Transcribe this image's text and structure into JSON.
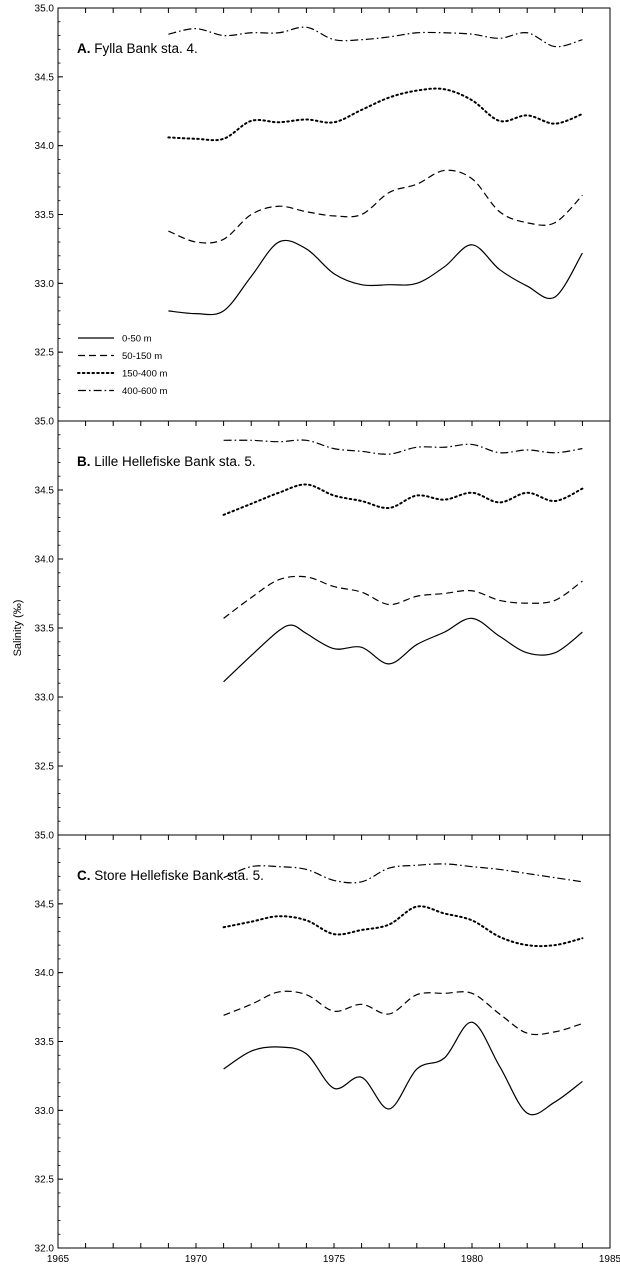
{
  "chart_data": {
    "type": "line",
    "ylabel_prefix": "Salinity (",
    "ylabel_unit": "‰",
    "ylabel_suffix": ")",
    "x_ticks": [
      1965,
      1970,
      1975,
      1980,
      1985
    ],
    "xlim": [
      1965,
      1985
    ],
    "grid": false,
    "legend_placement": "lower-left of panel A",
    "legend": [
      {
        "label": "0-50 m",
        "style": "solid"
      },
      {
        "label": "50-150 m",
        "style": "dashed"
      },
      {
        "label": "150-400 m",
        "style": "dotted"
      },
      {
        "label": "400-600 m",
        "style": "dashdot"
      }
    ],
    "panels": [
      {
        "letter": "A.",
        "title": "Fylla Bank sta. 4.",
        "ylim": [
          32.0,
          35.0
        ],
        "y_ticks": [
          "35.0",
          "34.5",
          "34.0",
          "33.5",
          "33.0",
          "32.5"
        ],
        "series": [
          {
            "depth": "0-50 m",
            "x": [
              1969,
              1970,
              1971,
              1972,
              1973,
              1974,
              1975,
              1976,
              1977,
              1978,
              1979,
              1980,
              1981,
              1982,
              1983,
              1984
            ],
            "values": [
              32.8,
              32.78,
              32.8,
              33.05,
              33.3,
              33.25,
              33.07,
              32.99,
              32.99,
              33.0,
              33.12,
              33.28,
              33.1,
              32.98,
              32.9,
              33.22
            ]
          },
          {
            "depth": "50-150 m",
            "x": [
              1969,
              1970,
              1971,
              1972,
              1973,
              1974,
              1975,
              1976,
              1977,
              1978,
              1979,
              1980,
              1981,
              1982,
              1983,
              1984
            ],
            "values": [
              33.38,
              33.3,
              33.32,
              33.5,
              33.56,
              33.52,
              33.49,
              33.5,
              33.66,
              33.72,
              33.82,
              33.76,
              33.52,
              33.44,
              33.44,
              33.64
            ]
          },
          {
            "depth": "150-400 m",
            "x": [
              1969,
              1970,
              1971,
              1972,
              1973,
              1974,
              1975,
              1976,
              1977,
              1978,
              1979,
              1980,
              1981,
              1982,
              1983,
              1984
            ],
            "values": [
              34.06,
              34.05,
              34.05,
              34.18,
              34.17,
              34.19,
              34.17,
              34.26,
              34.35,
              34.4,
              34.41,
              34.33,
              34.18,
              34.22,
              34.16,
              34.23
            ]
          },
          {
            "depth": "400-600 m",
            "x": [
              1969,
              1970,
              1971,
              1972,
              1973,
              1974,
              1975,
              1976,
              1977,
              1978,
              1979,
              1980,
              1981,
              1982,
              1983,
              1984
            ],
            "values": [
              34.81,
              34.85,
              34.8,
              34.82,
              34.82,
              34.86,
              34.77,
              34.77,
              34.79,
              34.82,
              34.82,
              34.81,
              34.78,
              34.82,
              34.72,
              34.77
            ]
          }
        ]
      },
      {
        "letter": "B.",
        "title": "Lille Hellefiske Bank sta. 5.",
        "ylim": [
          32.0,
          35.0
        ],
        "y_ticks": [
          "35.0",
          "34.5",
          "34.0",
          "33.5",
          "33.0",
          "32.5"
        ],
        "series": [
          {
            "depth": "0-50 m",
            "x": [
              1971,
              1972,
              1973,
              1973.5,
              1974,
              1975,
              1976,
              1977,
              1978,
              1979,
              1980,
              1981,
              1982,
              1983,
              1984
            ],
            "values": [
              33.11,
              33.3,
              33.48,
              33.52,
              33.46,
              33.35,
              33.36,
              33.24,
              33.38,
              33.47,
              33.57,
              33.44,
              33.32,
              33.32,
              33.47
            ]
          },
          {
            "depth": "50-150 m",
            "x": [
              1971,
              1972,
              1973,
              1974,
              1975,
              1976,
              1977,
              1978,
              1979,
              1980,
              1981,
              1982,
              1983,
              1984
            ],
            "values": [
              33.57,
              33.72,
              33.85,
              33.87,
              33.8,
              33.76,
              33.67,
              33.73,
              33.75,
              33.77,
              33.7,
              33.68,
              33.7,
              33.84
            ]
          },
          {
            "depth": "150-400 m",
            "x": [
              1971,
              1972,
              1973,
              1974,
              1975,
              1976,
              1977,
              1978,
              1979,
              1980,
              1981,
              1982,
              1983,
              1984
            ],
            "values": [
              34.32,
              34.4,
              34.48,
              34.54,
              34.46,
              34.42,
              34.37,
              34.46,
              34.43,
              34.48,
              34.41,
              34.48,
              34.42,
              34.51
            ]
          },
          {
            "depth": "400-600 m",
            "x": [
              1971,
              1972,
              1973,
              1974,
              1975,
              1976,
              1977,
              1978,
              1979,
              1980,
              1981,
              1982,
              1983,
              1984
            ],
            "values": [
              34.86,
              34.86,
              34.85,
              34.86,
              34.8,
              34.78,
              34.76,
              34.81,
              34.81,
              34.83,
              34.77,
              34.79,
              34.77,
              34.8
            ]
          }
        ]
      },
      {
        "letter": "C.",
        "title": "Store Hellefiske Bank sta. 5.",
        "ylim": [
          32.0,
          35.0
        ],
        "y_ticks": [
          "35.0",
          "34.5",
          "34.0",
          "33.5",
          "33.0",
          "32.5",
          "32.0"
        ],
        "series": [
          {
            "depth": "0-50 m",
            "x": [
              1971,
              1972,
              1973,
              1974,
              1975,
              1976,
              1977,
              1978,
              1979,
              1980,
              1981,
              1982,
              1983,
              1984
            ],
            "values": [
              33.3,
              33.43,
              33.46,
              33.41,
              33.16,
              33.24,
              33.01,
              33.3,
              33.38,
              33.64,
              33.32,
              32.98,
              33.06,
              33.21
            ]
          },
          {
            "depth": "50-150 m",
            "x": [
              1971,
              1972,
              1973,
              1974,
              1975,
              1976,
              1977,
              1978,
              1979,
              1980,
              1981,
              1982,
              1983,
              1984
            ],
            "values": [
              33.69,
              33.77,
              33.86,
              33.84,
              33.72,
              33.77,
              33.7,
              33.84,
              33.85,
              33.85,
              33.7,
              33.56,
              33.57,
              33.63
            ]
          },
          {
            "depth": "150-400 m",
            "x": [
              1971,
              1972,
              1973,
              1974,
              1975,
              1976,
              1977,
              1978,
              1979,
              1980,
              1981,
              1982,
              1983,
              1984
            ],
            "values": [
              34.33,
              34.37,
              34.41,
              34.38,
              34.28,
              34.31,
              34.35,
              34.48,
              34.43,
              34.38,
              34.26,
              34.2,
              34.2,
              34.25
            ]
          },
          {
            "depth": "400-600 m",
            "x": [
              1971,
              1972,
              1973,
              1974,
              1975,
              1976,
              1977,
              1978,
              1979,
              1980,
              1981,
              1982,
              1983,
              1984
            ],
            "values": [
              34.69,
              34.77,
              34.77,
              34.75,
              34.67,
              34.66,
              34.76,
              34.78,
              34.79,
              34.77,
              34.75,
              34.72,
              34.69,
              34.66
            ]
          }
        ]
      }
    ]
  }
}
